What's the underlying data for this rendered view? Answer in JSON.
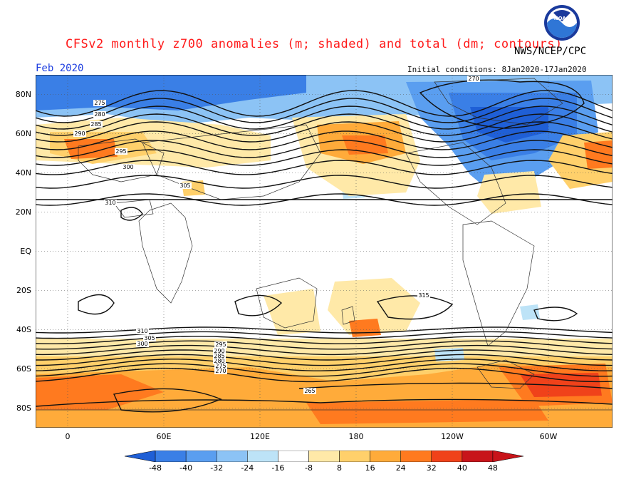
{
  "header": {
    "title": "CFSv2 monthly z700 anomalies (m; shaded) and total (dm; contours)",
    "agency": "NWS/NCEP/CPC",
    "month": "Feb 2020",
    "init": "Initial conditions: 8Jan2020-17Jan2020",
    "logo_text": "NOAA"
  },
  "axes": {
    "lat_ticks": [
      {
        "label": "80N",
        "lat": 80
      },
      {
        "label": "60N",
        "lat": 60
      },
      {
        "label": "40N",
        "lat": 40
      },
      {
        "label": "20N",
        "lat": 20
      },
      {
        "label": "EQ",
        "lat": 0
      },
      {
        "label": "20S",
        "lat": -20
      },
      {
        "label": "40S",
        "lat": -40
      },
      {
        "label": "60S",
        "lat": -60
      },
      {
        "label": "80S",
        "lat": -80
      }
    ],
    "lon_ticks": [
      {
        "label": "0",
        "lon": 0
      },
      {
        "label": "60E",
        "lon": 60
      },
      {
        "label": "120E",
        "lon": 120
      },
      {
        "label": "180",
        "lon": 180
      },
      {
        "label": "120W",
        "lon": 240
      },
      {
        "label": "60W",
        "lon": 300
      },
      {
        "label": "0",
        "lon": 360
      }
    ]
  },
  "colorbar": {
    "labels": [
      "-48",
      "-40",
      "-32",
      "-24",
      "-16",
      "-8",
      "8",
      "16",
      "24",
      "32",
      "40",
      "48"
    ],
    "colors": [
      "#1f5fd6",
      "#3a7fe6",
      "#5a9ef0",
      "#8cc3f5",
      "#bde3f7",
      "#ffffff",
      "#ffe9a8",
      "#ffd06b",
      "#ffab3a",
      "#ff7a1f",
      "#f0421a",
      "#c8141a"
    ]
  },
  "contour_labels": {
    "north": [
      "275",
      "280",
      "285",
      "290",
      "295",
      "300",
      "305",
      "310",
      "270"
    ],
    "south": [
      "315",
      "310",
      "305",
      "300",
      "295",
      "290",
      "285",
      "280",
      "275",
      "270",
      "265"
    ]
  }
}
